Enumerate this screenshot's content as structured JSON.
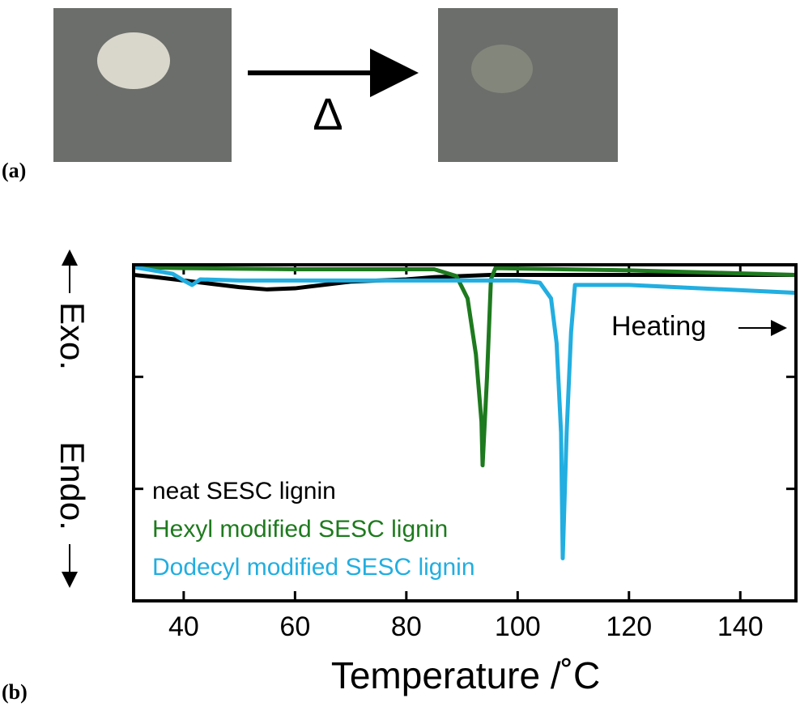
{
  "panel_a": {
    "label": "(a)",
    "arrow_label": "Δ"
  },
  "panel_b_label": "(b)",
  "chart_data": {
    "type": "line",
    "xlabel": "Temperature /˚C",
    "annotations": {
      "exo": "Exo.",
      "endo": "Endo.",
      "heating": "Heating"
    },
    "xlim": [
      31,
      150
    ],
    "xticks": [
      40,
      60,
      80,
      100,
      120,
      140
    ],
    "ylim": [
      0,
      3
    ],
    "yticks": [
      1,
      2
    ],
    "series": [
      {
        "name": "neat SESC lignin",
        "color": "#000000",
        "x": [
          31,
          35,
          40,
          45,
          50,
          55,
          60,
          65,
          70,
          75,
          80,
          85,
          90,
          95,
          100,
          120,
          150
        ],
        "values": [
          2.91,
          2.89,
          2.86,
          2.83,
          2.8,
          2.78,
          2.79,
          2.82,
          2.85,
          2.86,
          2.87,
          2.89,
          2.9,
          2.91,
          2.91,
          2.91,
          2.91
        ]
      },
      {
        "name": "Hexyl modified SESC lignin",
        "color": "#1e7a1e",
        "x": [
          31,
          40,
          60,
          80,
          85,
          89,
          91,
          92.5,
          93.5,
          93.7,
          94.5,
          95.2,
          96,
          120,
          150
        ],
        "values": [
          2.98,
          2.97,
          2.96,
          2.96,
          2.96,
          2.9,
          2.7,
          2.2,
          1.6,
          1.21,
          2.0,
          2.87,
          2.97,
          2.95,
          2.91
        ]
      },
      {
        "name": "Dodecyl modified SESC lignin",
        "color": "#22aee0",
        "x": [
          31,
          38,
          40,
          41.5,
          43,
          50,
          70,
          90,
          100,
          104,
          106,
          107,
          107.8,
          108.1,
          108.8,
          109.6,
          110.3,
          120,
          150
        ],
        "values": [
          2.98,
          2.92,
          2.86,
          2.82,
          2.87,
          2.86,
          2.86,
          2.86,
          2.86,
          2.84,
          2.7,
          2.3,
          1.5,
          0.38,
          1.5,
          2.4,
          2.82,
          2.82,
          2.75
        ]
      }
    ]
  }
}
